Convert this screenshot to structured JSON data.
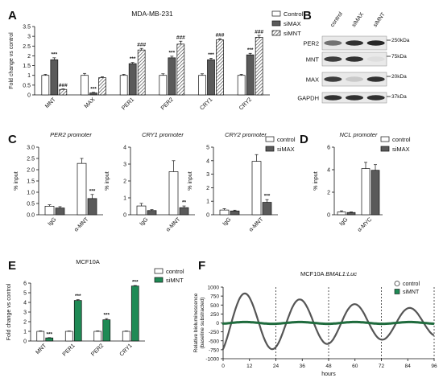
{
  "panel_letters": [
    "A",
    "B",
    "C",
    "D",
    "E",
    "F"
  ],
  "colors": {
    "control": "#ffffff",
    "siMAX": "#5a5a5a",
    "siMNT_hatch": "#3a3a3a",
    "siMNT_green": "#1f8a55",
    "trace_control": "#555555",
    "trace_siMNT": "#1f6b3d"
  },
  "chart_data": [
    {
      "panel": "A",
      "type": "bar",
      "title": "MDA-MB-231",
      "ylabel": "Fold change vs control",
      "ylim": [
        0,
        3.5
      ],
      "yticks": [
        "0",
        "0.5",
        "1",
        "1.5",
        "2",
        "2.5",
        "3",
        "3.5"
      ],
      "categories": [
        "MNT",
        "MAX",
        "PER1",
        "PER2",
        "CRY1",
        "CRY2"
      ],
      "series": [
        {
          "name": "Control",
          "values": [
            1.0,
            1.0,
            1.0,
            1.0,
            1.0,
            1.0
          ],
          "errors": [
            0.05,
            0.1,
            0.05,
            0.08,
            0.08,
            0.05
          ]
        },
        {
          "name": "siMAX",
          "values": [
            1.8,
            0.1,
            1.6,
            1.9,
            1.8,
            2.05
          ],
          "errors": [
            0.1,
            0.03,
            0.06,
            0.08,
            0.08,
            0.08
          ]
        },
        {
          "name": "siMNT",
          "values": [
            0.28,
            0.88,
            2.3,
            2.6,
            2.82,
            2.95
          ],
          "errors": [
            0.03,
            0.05,
            0.08,
            0.15,
            0.06,
            0.1
          ]
        }
      ],
      "annotations": [
        {
          "category": 0,
          "series": 1,
          "text": "***"
        },
        {
          "category": 0,
          "series": 2,
          "text": "###"
        },
        {
          "category": 1,
          "series": 1,
          "text": "***"
        },
        {
          "category": 2,
          "series": 1,
          "text": "***"
        },
        {
          "category": 2,
          "series": 2,
          "text": "###"
        },
        {
          "category": 3,
          "series": 1,
          "text": "***"
        },
        {
          "category": 3,
          "series": 2,
          "text": "###"
        },
        {
          "category": 4,
          "series": 1,
          "text": "***"
        },
        {
          "category": 4,
          "series": 2,
          "text": "###"
        },
        {
          "category": 5,
          "series": 1,
          "text": "***"
        },
        {
          "category": 5,
          "series": 2,
          "text": "###"
        }
      ],
      "legend": [
        "Control",
        "siMAX",
        "siMNT"
      ]
    },
    {
      "panel": "C1",
      "type": "bar",
      "title": "PER2 promoter",
      "ylabel": "% input",
      "ylim": [
        0,
        3.0
      ],
      "yticks": [
        "0.0",
        "0.5",
        "1.0",
        "1.5",
        "2.0",
        "2.5",
        "3.0"
      ],
      "categories": [
        "IgG",
        "α-MNT"
      ],
      "series": [
        {
          "name": "control",
          "values": [
            0.38,
            2.28
          ],
          "errors": [
            0.06,
            0.22
          ]
        },
        {
          "name": "siMAX",
          "values": [
            0.3,
            0.72
          ],
          "errors": [
            0.06,
            0.18
          ]
        }
      ],
      "annotations": [
        {
          "category": 1,
          "series": 1,
          "text": "***"
        }
      ]
    },
    {
      "panel": "C2",
      "type": "bar",
      "title": "CRY1 promoter",
      "ylabel": "% input",
      "ylim": [
        0,
        4.0
      ],
      "yticks": [
        "0",
        "1",
        "2",
        "3",
        "4"
      ],
      "categories": [
        "IgG",
        "α-MNT"
      ],
      "series": [
        {
          "name": "control",
          "values": [
            0.52,
            2.55
          ],
          "errors": [
            0.15,
            0.65
          ]
        },
        {
          "name": "siMAX",
          "values": [
            0.25,
            0.42
          ],
          "errors": [
            0.05,
            0.1
          ]
        }
      ],
      "annotations": [
        {
          "category": 1,
          "series": 1,
          "text": "**"
        }
      ]
    },
    {
      "panel": "C3",
      "type": "bar",
      "title": "CRY2 promoter",
      "ylabel": "% input",
      "ylim": [
        0,
        5.0
      ],
      "yticks": [
        "0",
        "1",
        "2",
        "3",
        "4",
        "5"
      ],
      "categories": [
        "IgG",
        "α-MNT"
      ],
      "series": [
        {
          "name": "control",
          "values": [
            0.35,
            3.95
          ],
          "errors": [
            0.1,
            0.5
          ]
        },
        {
          "name": "siMAX",
          "values": [
            0.28,
            0.92
          ],
          "errors": [
            0.06,
            0.2
          ]
        }
      ],
      "annotations": [
        {
          "category": 1,
          "series": 1,
          "text": "***"
        }
      ],
      "legend": [
        "control",
        "siMAX"
      ]
    },
    {
      "panel": "D",
      "type": "bar",
      "title": "NCL promoter",
      "ylabel": "% input",
      "ylim": [
        0,
        6
      ],
      "yticks": [
        "0",
        "2",
        "4",
        "6"
      ],
      "categories": [
        "IgG",
        "α-MYC"
      ],
      "series": [
        {
          "name": "control",
          "values": [
            0.25,
            4.1
          ],
          "errors": [
            0.1,
            0.55
          ]
        },
        {
          "name": "siMAX",
          "values": [
            0.2,
            3.95
          ],
          "errors": [
            0.05,
            0.5
          ]
        }
      ],
      "legend": [
        "control",
        "siMAX"
      ]
    },
    {
      "panel": "E",
      "type": "bar",
      "title": "MCF10A",
      "ylabel": "Fold change vs control",
      "ylim": [
        0,
        6
      ],
      "yticks": [
        "0",
        "1",
        "2",
        "3",
        "4",
        "5",
        "6"
      ],
      "categories": [
        "MNT",
        "PER1",
        "PER2",
        "CRY1"
      ],
      "series": [
        {
          "name": "control",
          "values": [
            1.0,
            1.0,
            1.0,
            1.0
          ],
          "errors": [
            0.05,
            0.04,
            0.05,
            0.04
          ]
        },
        {
          "name": "siMNT",
          "values": [
            0.32,
            4.2,
            2.2,
            5.7
          ],
          "errors": [
            0.03,
            0.08,
            0.12,
            0.05
          ]
        }
      ],
      "annotations": [
        {
          "category": 0,
          "series": 1,
          "text": "***"
        },
        {
          "category": 1,
          "series": 1,
          "text": "***"
        },
        {
          "category": 2,
          "series": 1,
          "text": "***"
        },
        {
          "category": 3,
          "series": 1,
          "text": "***"
        }
      ],
      "legend": [
        "control",
        "siMNT"
      ]
    },
    {
      "panel": "F",
      "type": "line",
      "title_prefix": "MCF10A ",
      "title_italic": "BMAL1:Luc",
      "xlabel": "hours",
      "ylabel_line1": "Relative bioluminescence",
      "ylabel_line2": "(baseline substracted)",
      "xlim": [
        0,
        96
      ],
      "ylim": [
        -1000,
        1000
      ],
      "xticks": [
        "0",
        "12",
        "24",
        "36",
        "48",
        "60",
        "72",
        "84",
        "96"
      ],
      "yticks": [
        "-1000",
        "-750",
        "-500",
        "-250",
        "0",
        "250",
        "500",
        "750",
        "1000"
      ],
      "vlines": [
        24,
        48,
        72,
        96
      ],
      "series": [
        {
          "name": "control",
          "period_h": 25,
          "peak_h": 10,
          "amplitude": 900,
          "damping_per_h": 0.009
        },
        {
          "name": "siMNT",
          "period_h": 25,
          "peak_h": 10,
          "amplitude": 25,
          "damping_per_h": 0.0
        }
      ],
      "legend": [
        "control",
        "siMNT"
      ]
    }
  ],
  "western": {
    "columns": [
      "control",
      "siMAX",
      "siMNT"
    ],
    "rows": [
      {
        "label": "PER2",
        "marker": "250kDa",
        "intensity": [
          0.55,
          0.85,
          0.9
        ]
      },
      {
        "label": "MNT",
        "marker": "75kDa",
        "intensity": [
          0.8,
          0.85,
          0.05
        ]
      },
      {
        "label": "MAX",
        "marker": "20kDa",
        "intensity": [
          0.8,
          0.15,
          0.85
        ]
      },
      {
        "label": "GAPDH",
        "marker": "37kDa",
        "intensity": [
          0.85,
          0.85,
          0.85
        ]
      }
    ]
  }
}
